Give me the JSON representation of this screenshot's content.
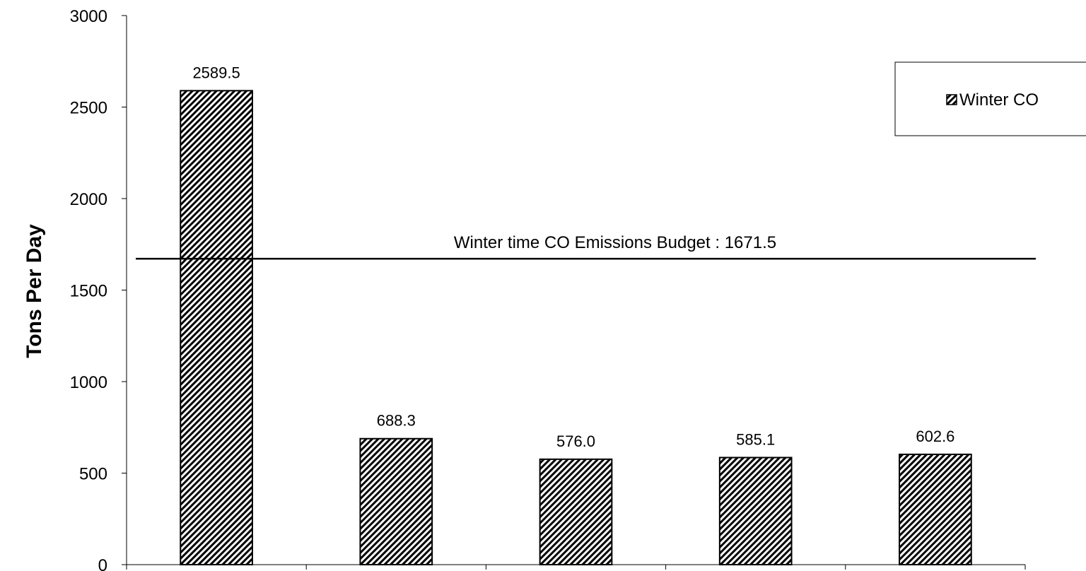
{
  "chart_data": {
    "type": "bar",
    "categories": [
      "",
      "",
      "",
      "",
      ""
    ],
    "series": [
      {
        "name": "Winter CO",
        "values": [
          2589.5,
          688.3,
          576.0,
          585.1,
          602.6
        ]
      }
    ],
    "data_labels": [
      "2589.5",
      "688.3",
      "576.0",
      "585.1",
      "602.6"
    ],
    "title": "",
    "xlabel": "",
    "ylabel": "Tons Per Day",
    "ylim": [
      0,
      3000
    ],
    "yticks": [
      0,
      500,
      1000,
      1500,
      2000,
      2500,
      3000
    ],
    "grid": false,
    "legend_position": "top-right",
    "reference_line": {
      "value": 1671.5,
      "label": "Winter time CO Emissions  Budget : 1671.5"
    },
    "colors": {
      "bar_fill": "#ffffff",
      "bar_hatch": "#000000",
      "bar_border": "#000000"
    }
  }
}
